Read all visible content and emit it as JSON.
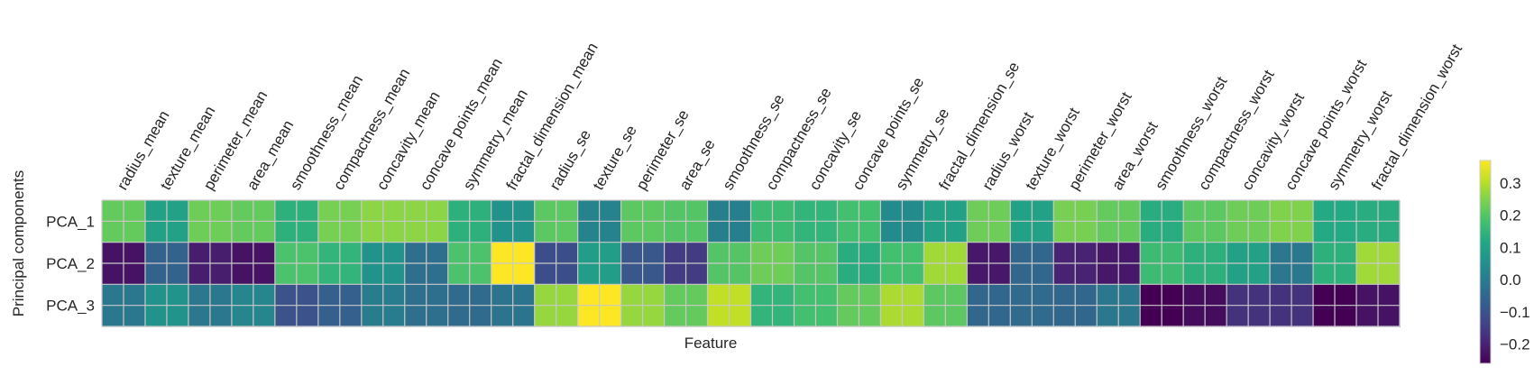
{
  "chart_data": {
    "type": "heatmap",
    "title": "",
    "xlabel": "Feature",
    "ylabel": "Principal components",
    "rows": [
      "PCA_1",
      "PCA_2",
      "PCA_3"
    ],
    "columns": [
      "radius_mean",
      "texture_mean",
      "perimeter_mean",
      "area_mean",
      "smoothness_mean",
      "compactness_mean",
      "concavity_mean",
      "concave points_mean",
      "symmetry_mean",
      "fractal_dimension_mean",
      "radius_se",
      "texture_se",
      "perimeter_se",
      "area_se",
      "smoothness_se",
      "compactness_se",
      "concavity_se",
      "concave points_se",
      "symmetry_se",
      "fractal_dimension_se",
      "radius_worst",
      "texture_worst",
      "perimeter_worst",
      "area_worst",
      "smoothness_worst",
      "compactness_worst",
      "concavity_worst",
      "concave points_worst",
      "symmetry_worst",
      "fractal_dimension_worst"
    ],
    "values": [
      [
        0.22,
        0.1,
        0.23,
        0.22,
        0.14,
        0.24,
        0.26,
        0.26,
        0.14,
        0.06,
        0.21,
        0.02,
        0.21,
        0.2,
        0.01,
        0.17,
        0.15,
        0.18,
        0.04,
        0.1,
        0.23,
        0.1,
        0.24,
        0.22,
        0.13,
        0.21,
        0.23,
        0.25,
        0.12,
        0.13
      ],
      [
        -0.23,
        -0.06,
        -0.21,
        -0.23,
        0.19,
        0.15,
        0.06,
        -0.03,
        0.19,
        0.37,
        -0.11,
        0.09,
        -0.09,
        -0.15,
        0.2,
        0.23,
        0.2,
        0.13,
        0.18,
        0.28,
        -0.22,
        -0.05,
        -0.2,
        -0.22,
        0.17,
        0.14,
        0.1,
        -0.01,
        0.14,
        0.28
      ],
      [
        -0.01,
        0.06,
        -0.01,
        0.03,
        -0.1,
        -0.07,
        0.0,
        -0.03,
        -0.04,
        -0.02,
        0.27,
        0.37,
        0.27,
        0.22,
        0.31,
        0.15,
        0.18,
        0.22,
        0.29,
        0.21,
        -0.05,
        -0.04,
        -0.05,
        -0.01,
        -0.26,
        -0.24,
        -0.17,
        -0.17,
        -0.27,
        -0.23
      ]
    ],
    "colormap": "viridis",
    "colorbar": {
      "vmin": -0.26,
      "vmax": 0.37,
      "ticks": [
        "0.3",
        "0.2",
        "0.1",
        "0.0",
        "−0.1",
        "−0.2"
      ]
    },
    "grid": true
  }
}
